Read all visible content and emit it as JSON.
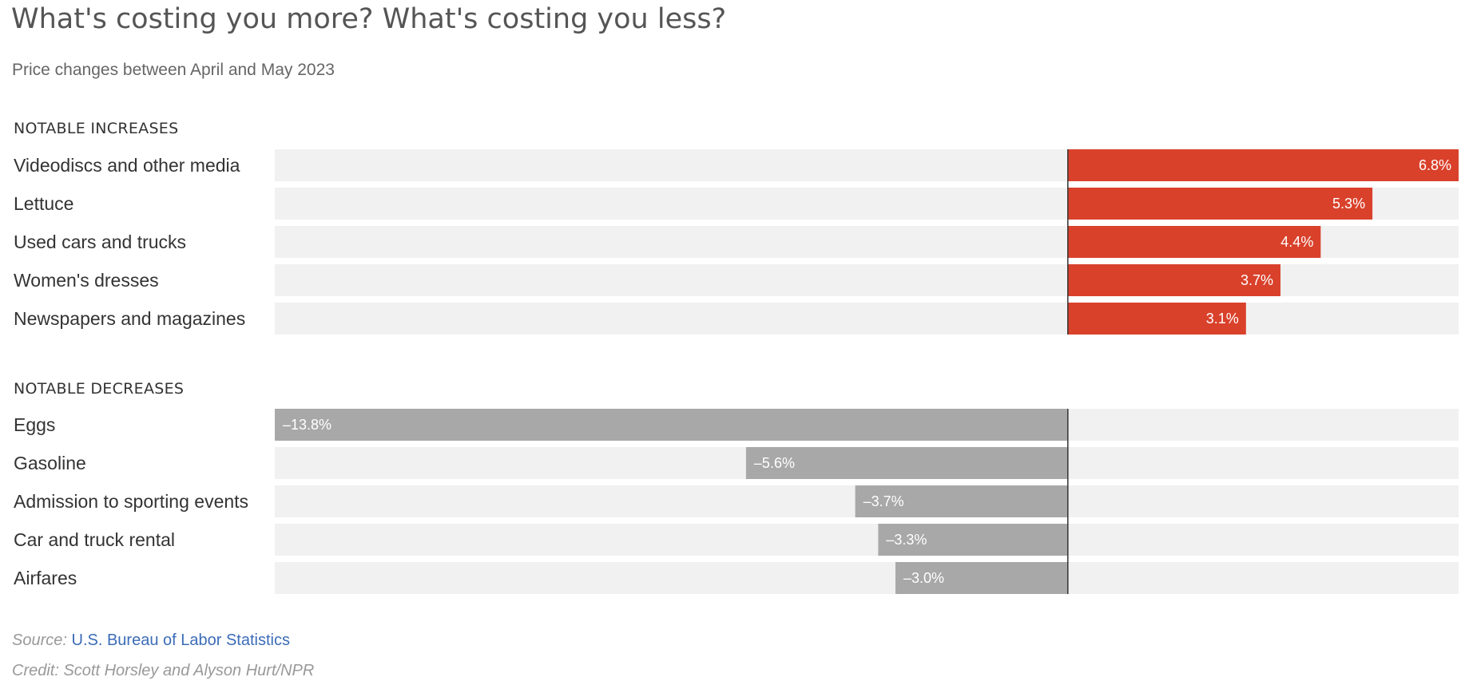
{
  "chart_data": {
    "type": "bar",
    "title": "What's costing you more? What's costing you less?",
    "subtitle": "Price changes between April and May 2023",
    "unit": "%",
    "xlim": [
      -13.8,
      6.8
    ],
    "groups": [
      {
        "heading": "NOTABLE INCREASES",
        "color": "#d9412b",
        "categories": [
          "Videodiscs and other media",
          "Lettuce",
          "Used cars and trucks",
          "Women's dresses",
          "Newspapers and magazines"
        ],
        "values": [
          6.8,
          5.3,
          4.4,
          3.7,
          3.1
        ],
        "labels": [
          "6.8%",
          "5.3%",
          "4.4%",
          "3.7%",
          "3.1%"
        ]
      },
      {
        "heading": "NOTABLE DECREASES",
        "color": "#a8a8a8",
        "categories": [
          "Eggs",
          "Gasoline",
          "Admission to sporting events",
          "Car and truck rental",
          "Airfares"
        ],
        "values": [
          -13.8,
          -5.6,
          -3.7,
          -3.3,
          -3.0
        ],
        "labels": [
          "–13.8%",
          "–5.6%",
          "–3.7%",
          "–3.3%",
          "–3.0%"
        ]
      }
    ]
  },
  "colors": {
    "track": "#f1f1f1",
    "zero_line": "#333333"
  },
  "footer": {
    "source_prefix": "Source:",
    "source_link": "U.S. Bureau of Labor Statistics",
    "credit": "Credit: Scott Horsley and Alyson Hurt/NPR"
  }
}
